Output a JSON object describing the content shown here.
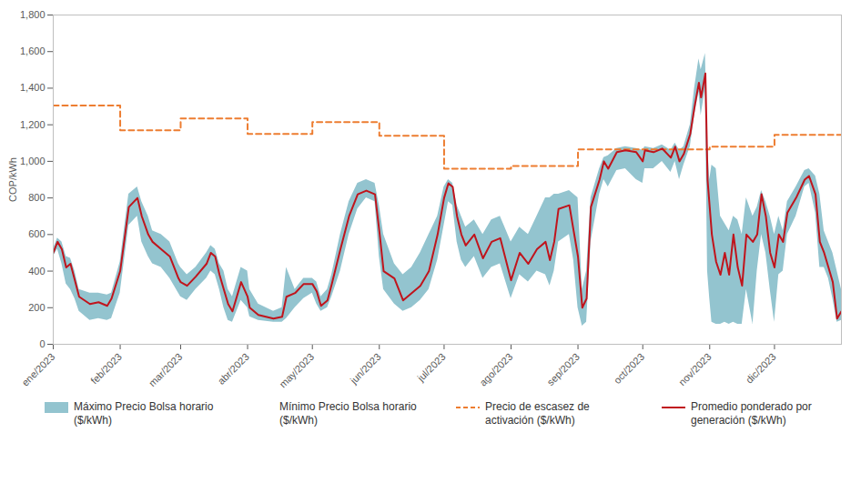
{
  "chart_data": {
    "type": "line",
    "ylabel": "COP/kWh",
    "x": [
      0,
      2,
      4,
      6,
      8,
      10,
      12,
      17,
      21,
      25,
      27,
      31,
      35,
      39,
      41,
      44,
      46,
      50,
      54,
      58,
      59,
      62,
      66,
      71,
      73,
      75,
      77,
      79,
      81,
      83,
      85,
      87,
      90,
      91,
      95,
      102,
      106,
      108,
      112,
      116,
      120,
      122,
      124,
      127,
      129,
      133,
      137,
      141,
      145,
      149,
      151,
      153,
      158,
      162,
      166,
      170,
      174,
      178,
      181,
      183,
      185,
      187,
      189,
      191,
      195,
      199,
      203,
      207,
      212,
      216,
      220,
      224,
      228,
      230,
      232,
      234,
      239,
      241,
      243,
      245,
      247,
      249,
      253,
      255,
      257,
      261,
      265,
      270,
      273,
      274,
      278,
      282,
      286,
      288,
      290,
      292,
      295,
      297,
      299,
      300,
      302,
      303,
      304,
      305,
      307,
      309,
      311,
      313,
      315,
      317,
      319,
      321,
      324,
      326,
      328,
      330,
      332,
      334,
      336,
      338,
      340,
      344,
      348,
      350,
      353,
      355,
      357,
      359,
      361,
      363,
      365
    ],
    "xlim": [
      0,
      365
    ],
    "xticks": [
      {
        "value": 0,
        "label": "ene/2023"
      },
      {
        "value": 31,
        "label": "feb/2023"
      },
      {
        "value": 59,
        "label": "mar/2023"
      },
      {
        "value": 90,
        "label": "abr/2023"
      },
      {
        "value": 120,
        "label": "may/2023"
      },
      {
        "value": 151,
        "label": "jun/2023"
      },
      {
        "value": 181,
        "label": "jul/2023"
      },
      {
        "value": 212,
        "label": "ago/2023"
      },
      {
        "value": 243,
        "label": "sep/2023"
      },
      {
        "value": 273,
        "label": "oct/2023"
      },
      {
        "value": 304,
        "label": "nov/2023"
      },
      {
        "value": 334,
        "label": "dic/2023"
      }
    ],
    "ylim": [
      0,
      1800
    ],
    "yticks": [
      0,
      200,
      400,
      600,
      800,
      {
        "value": 1000,
        "label": "1,000"
      },
      {
        "value": 1200,
        "label": "1,200"
      },
      {
        "value": 1400,
        "label": "1,400"
      },
      {
        "value": 1600,
        "label": "1,600"
      },
      {
        "value": 1800,
        "label": "1,800"
      }
    ],
    "grid": false,
    "legend": "bottom",
    "series": [
      {
        "name": "Máximo Precio Bolsa horario ($/kWh)",
        "type": "area",
        "color": "#93c4cf",
        "values": [
          520,
          580,
          560,
          480,
          470,
          400,
          300,
          280,
          280,
          270,
          280,
          450,
          820,
          860,
          780,
          700,
          620,
          600,
          560,
          440,
          420,
          380,
          420,
          500,
          540,
          520,
          440,
          400,
          300,
          260,
          340,
          420,
          400,
          300,
          220,
          180,
          200,
          420,
          300,
          360,
          360,
          340,
          260,
          300,
          380,
          600,
          780,
          880,
          900,
          880,
          760,
          600,
          440,
          380,
          420,
          500,
          600,
          700,
          860,
          900,
          880,
          760,
          700,
          640,
          680,
          600,
          680,
          700,
          560,
          640,
          600,
          700,
          800,
          800,
          820,
          820,
          840,
          820,
          800,
          300,
          400,
          800,
          960,
          1020,
          1030,
          1070,
          1080,
          1070,
          1060,
          1080,
          1070,
          1090,
          1060,
          1100,
          1060,
          1080,
          1200,
          1400,
          1560,
          1500,
          1590,
          1100,
          900,
          980,
          960,
          700,
          660,
          620,
          700,
          680,
          600,
          800,
          700,
          750,
          840,
          780,
          700,
          600,
          700,
          620,
          780,
          860,
          950,
          960,
          920,
          820,
          620,
          560,
          500,
          400,
          300
        ]
      },
      {
        "name": "Mínimo Precio Bolsa horario ($/kWh)",
        "type": "area",
        "color": "#ffffff",
        "values": [
          480,
          520,
          440,
          330,
          300,
          250,
          180,
          130,
          140,
          130,
          140,
          280,
          650,
          700,
          560,
          480,
          440,
          420,
          360,
          280,
          260,
          240,
          300,
          360,
          400,
          380,
          300,
          200,
          130,
          120,
          180,
          240,
          200,
          150,
          130,
          120,
          120,
          140,
          200,
          250,
          280,
          220,
          180,
          200,
          260,
          400,
          600,
          740,
          800,
          780,
          480,
          300,
          220,
          180,
          200,
          240,
          300,
          460,
          650,
          780,
          760,
          560,
          460,
          420,
          480,
          360,
          420,
          440,
          250,
          380,
          340,
          400,
          380,
          320,
          400,
          560,
          600,
          460,
          200,
          100,
          120,
          560,
          820,
          900,
          860,
          950,
          960,
          900,
          880,
          960,
          960,
          1000,
          940,
          1000,
          900,
          980,
          1080,
          1250,
          1380,
          1250,
          1400,
          400,
          250,
          120,
          110,
          110,
          120,
          110,
          120,
          110,
          110,
          300,
          110,
          400,
          600,
          500,
          300,
          120,
          380,
          400,
          600,
          700,
          860,
          880,
          720,
          420,
          420,
          360,
          250,
          120,
          130
        ]
      },
      {
        "name": "Precio de escasez de activación ($/kWh)",
        "type": "step",
        "line_style": "dashed",
        "color": "#ed7d31",
        "values": [
          1305,
          1305,
          1305,
          1305,
          1305,
          1305,
          1305,
          1305,
          1305,
          1305,
          1305,
          1170,
          1170,
          1170,
          1170,
          1170,
          1170,
          1170,
          1170,
          1170,
          1235,
          1235,
          1235,
          1235,
          1235,
          1235,
          1235,
          1235,
          1235,
          1235,
          1235,
          1235,
          1150,
          1150,
          1150,
          1150,
          1150,
          1150,
          1150,
          1150,
          1215,
          1215,
          1215,
          1215,
          1215,
          1215,
          1215,
          1215,
          1215,
          1215,
          1140,
          1140,
          1140,
          1140,
          1140,
          1140,
          1140,
          1140,
          960,
          960,
          960,
          960,
          960,
          960,
          960,
          960,
          960,
          960,
          975,
          975,
          975,
          975,
          975,
          975,
          975,
          975,
          975,
          975,
          1065,
          1065,
          1065,
          1065,
          1065,
          1065,
          1065,
          1065,
          1065,
          1065,
          1065,
          1065,
          1065,
          1065,
          1065,
          1065,
          1065,
          1065,
          1065,
          1065,
          1065,
          1065,
          1065,
          1065,
          1080,
          1080,
          1080,
          1080,
          1080,
          1080,
          1080,
          1080,
          1080,
          1080,
          1080,
          1080,
          1080,
          1080,
          1080,
          1145,
          1145,
          1145,
          1145,
          1145,
          1145,
          1145,
          1145,
          1145,
          1145,
          1145,
          1145,
          1145,
          1145
        ]
      },
      {
        "name": "Promedio ponderado por generación ($/kWh)",
        "type": "line",
        "line_style": "solid",
        "color": "#c0141c",
        "values": [
          500,
          560,
          520,
          420,
          440,
          350,
          260,
          220,
          230,
          210,
          250,
          400,
          750,
          800,
          700,
          600,
          560,
          520,
          480,
          360,
          340,
          320,
          370,
          440,
          500,
          480,
          380,
          300,
          220,
          180,
          260,
          340,
          260,
          200,
          160,
          140,
          150,
          260,
          280,
          330,
          330,
          290,
          210,
          240,
          330,
          520,
          700,
          820,
          840,
          820,
          620,
          400,
          360,
          240,
          280,
          320,
          400,
          600,
          800,
          880,
          860,
          700,
          600,
          540,
          600,
          470,
          560,
          580,
          350,
          500,
          440,
          520,
          560,
          460,
          560,
          740,
          760,
          620,
          480,
          200,
          250,
          750,
          900,
          1000,
          960,
          1050,
          1060,
          1050,
          1000,
          1060,
          1050,
          1070,
          1020,
          1080,
          1000,
          1040,
          1150,
          1300,
          1430,
          1350,
          1480,
          900,
          750,
          600,
          450,
          380,
          500,
          380,
          600,
          420,
          320,
          600,
          560,
          600,
          820,
          700,
          500,
          420,
          600,
          560,
          720,
          800,
          900,
          920,
          820,
          560,
          500,
          420,
          340,
          140,
          180
        ]
      }
    ]
  }
}
